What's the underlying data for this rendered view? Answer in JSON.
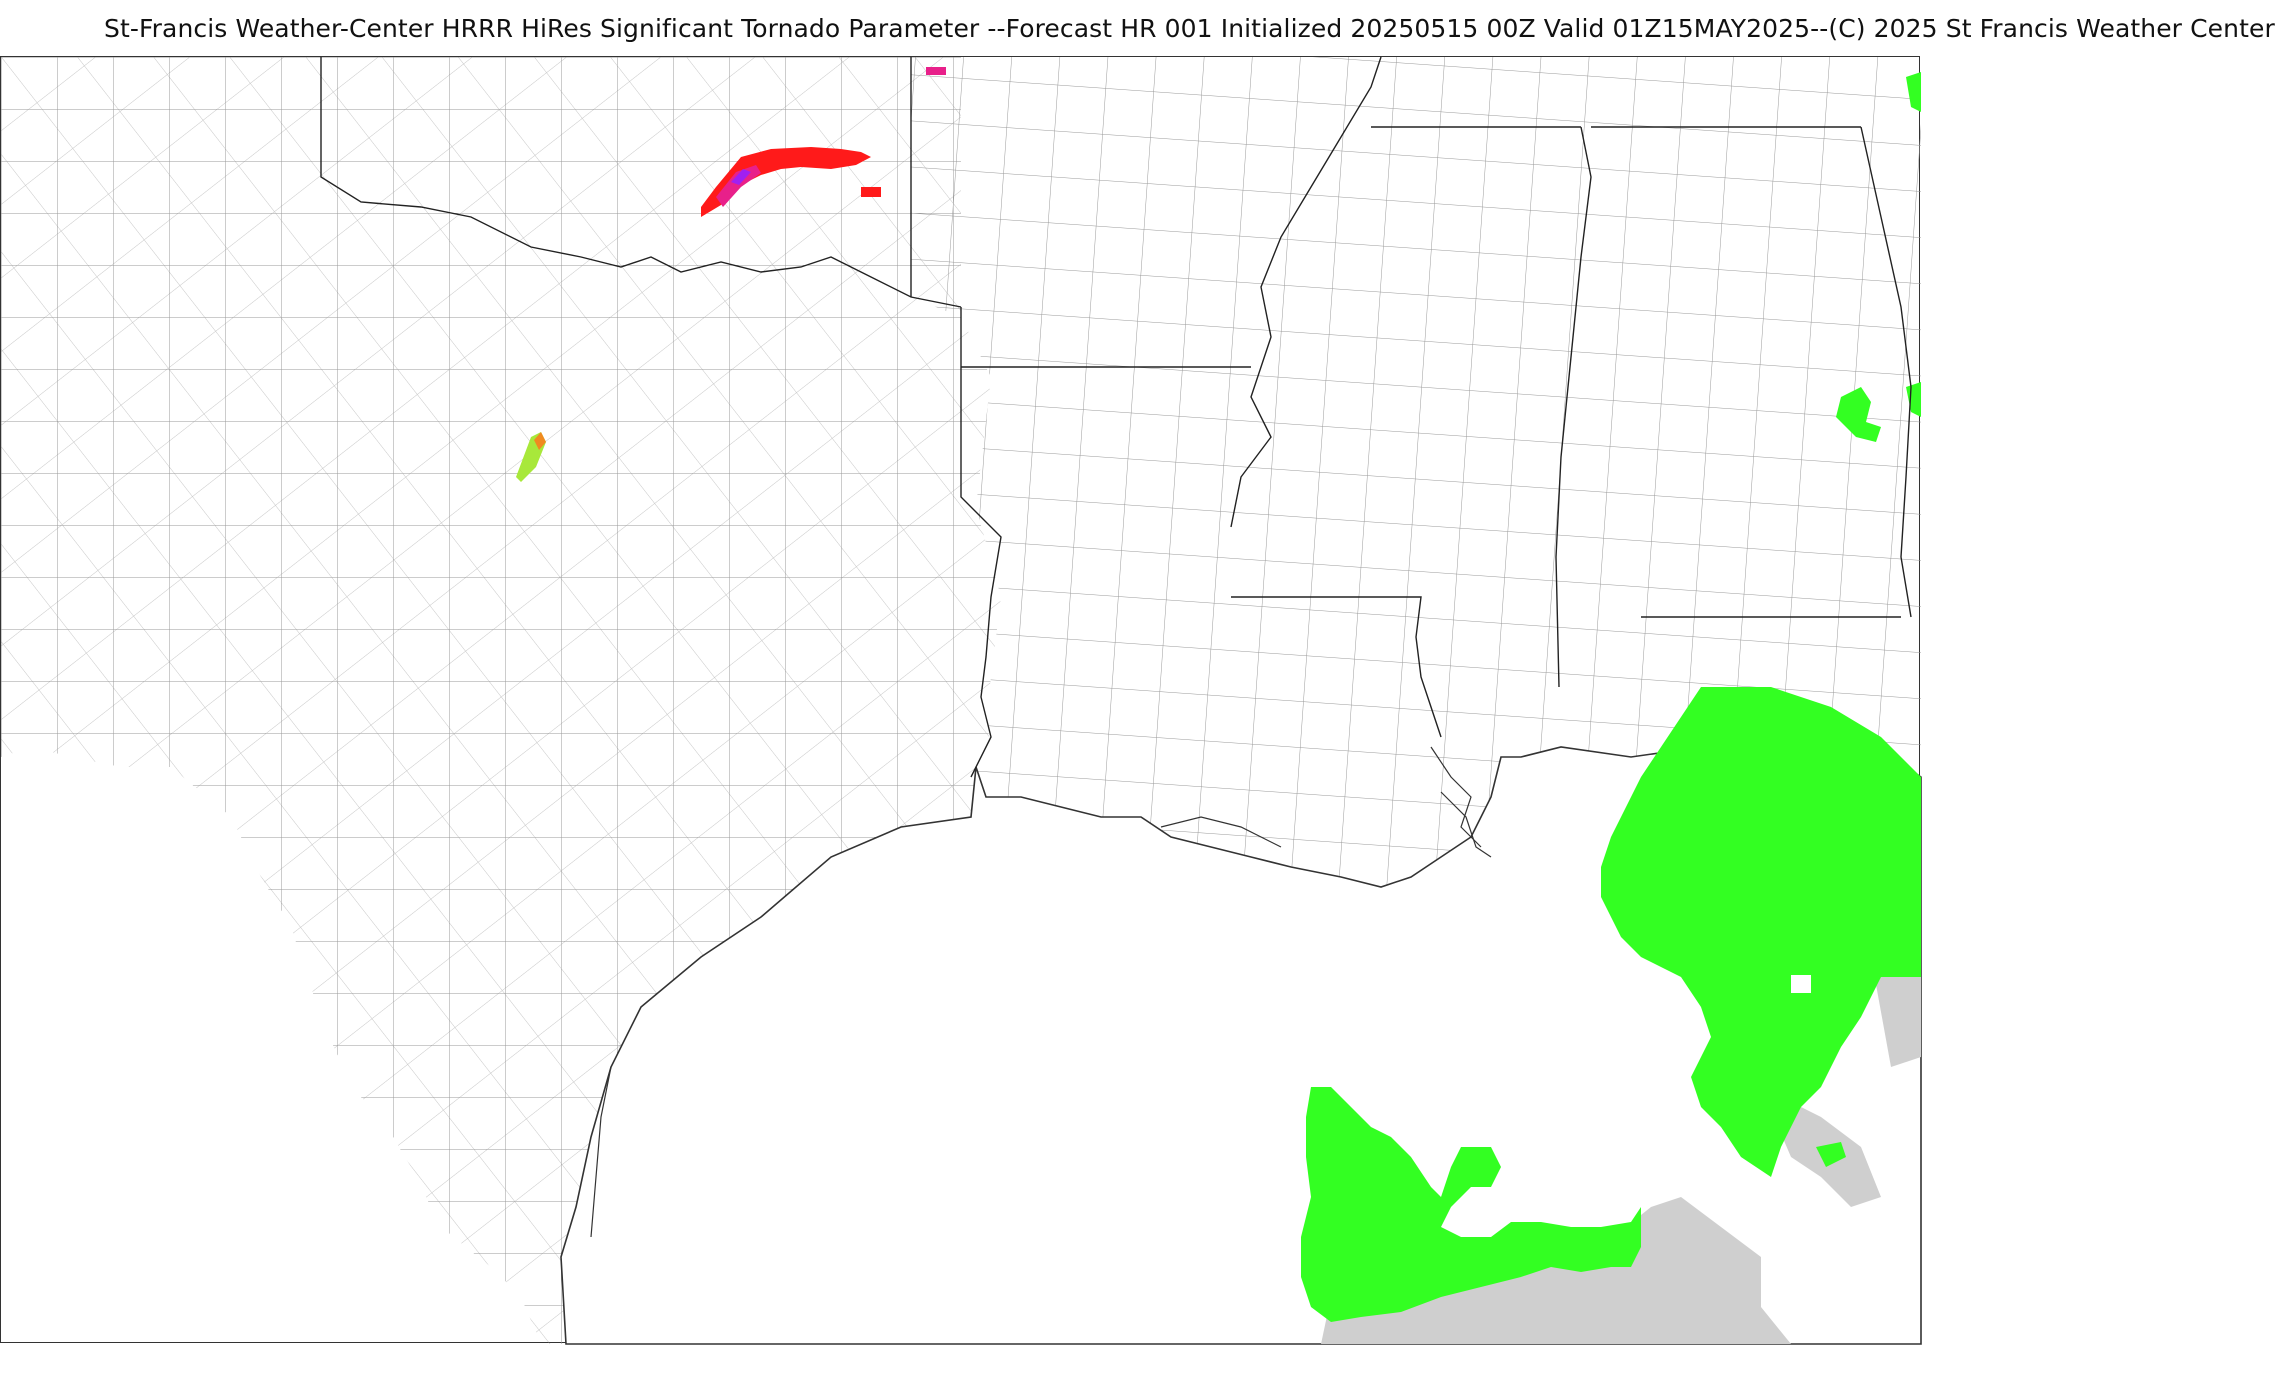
{
  "title": "St-Francis Weather-Center HRRR HiRes Significant Tornado Parameter --Forecast HR 001 Initialized 20250515 00Z Valid 01Z15MAY2025--(C) 2025 St Francis Weather Center",
  "map": {
    "product": "HRRR Significant Tornado Parameter",
    "colors": {
      "county_line": "#8a8a8a",
      "state_line": "#222222",
      "coast_line": "#333333",
      "stp_light_green": "#33ff22",
      "stp_yellow_green": "#a8e83a",
      "stp_orange": "#f08a20",
      "stp_red": "#ff1a1a",
      "stp_magenta": "#e8208a",
      "stp_purple": "#a020f0",
      "missing_gray": "#cfcfcf"
    }
  }
}
